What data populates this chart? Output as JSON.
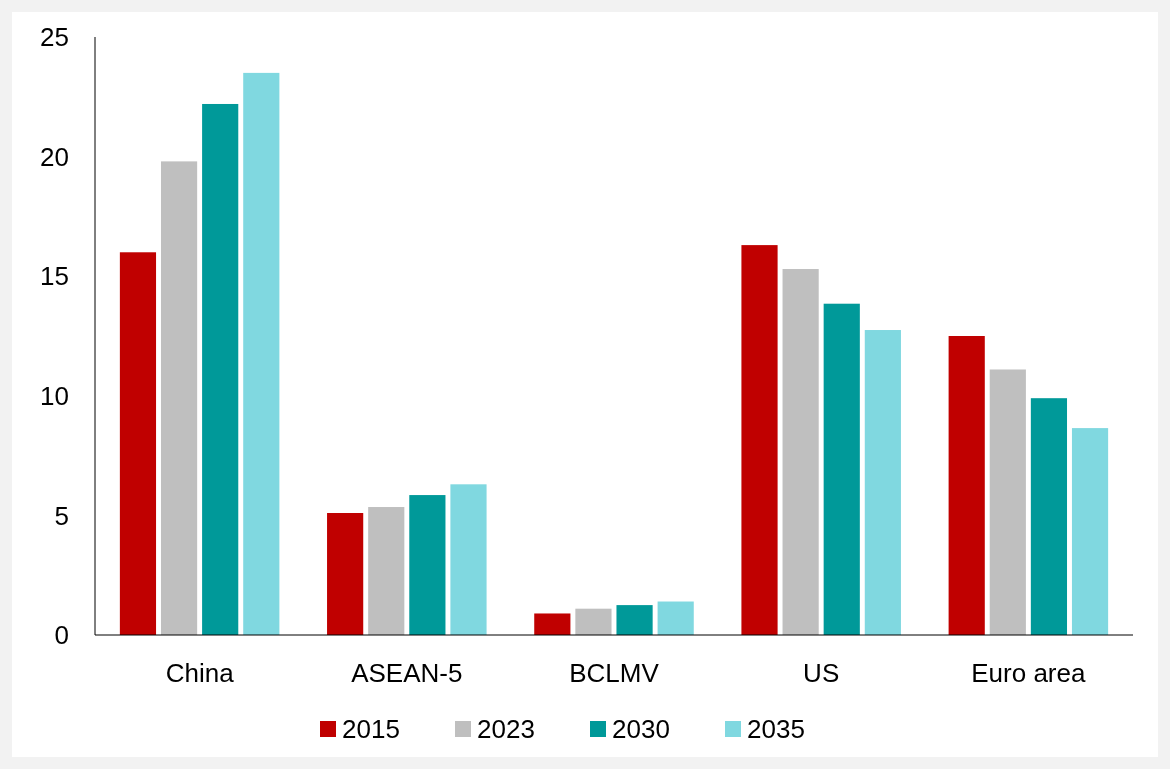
{
  "chart_data": {
    "type": "bar",
    "categories": [
      "China",
      "ASEAN-5",
      "BCLMV",
      "US",
      "Euro area"
    ],
    "series": [
      {
        "name": "2015",
        "color": "#c00000",
        "values": [
          16.0,
          5.1,
          0.9,
          16.3,
          12.5
        ]
      },
      {
        "name": "2023",
        "color": "#bfbfbf",
        "values": [
          19.8,
          5.35,
          1.1,
          15.3,
          11.1
        ]
      },
      {
        "name": "2030",
        "color": "#009999",
        "values": [
          22.2,
          5.85,
          1.25,
          13.85,
          9.9
        ]
      },
      {
        "name": "2035",
        "color": "#80d8e0",
        "values": [
          23.5,
          6.3,
          1.4,
          12.75,
          8.65
        ]
      }
    ],
    "ylim": [
      0,
      25
    ],
    "yticks": [
      0,
      5,
      10,
      15,
      20,
      25
    ],
    "grid": false,
    "legend": "bottom"
  }
}
